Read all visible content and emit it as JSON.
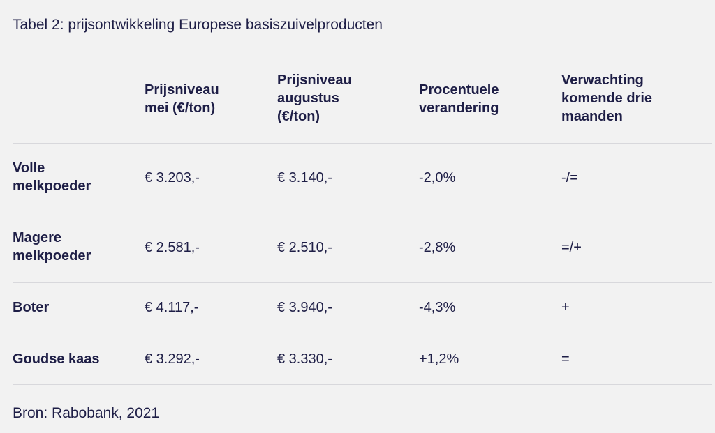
{
  "caption": "Tabel 2: prijsontwikkeling Europese basiszuivelproducten",
  "columns": [
    "Prijsniveau\nmei (€/ton)",
    "Prijsniveau\naugustus\n(€/ton)",
    "Procentuele\nverandering",
    "Verwachting\nkomende drie\nmaanden"
  ],
  "rows": [
    {
      "product": "Volle\nmelkpoeder",
      "mei": "€ 3.203,-",
      "augustus": "€ 3.140,-",
      "verandering": "-2,0%",
      "verwachting": "-/="
    },
    {
      "product": "Magere\nmelkpoeder",
      "mei": "€ 2.581,-",
      "augustus": "€ 2.510,-",
      "verandering": "-2,8%",
      "verwachting": "=/+"
    },
    {
      "product": "Boter",
      "mei": "€ 4.117,-",
      "augustus": "€ 3.940,-",
      "verandering": "-4,3%",
      "verwachting": "+"
    },
    {
      "product": "Goudse kaas",
      "mei": "€ 3.292,-",
      "augustus": "€ 3.330,-",
      "verandering": "+1,2%",
      "verwachting": "="
    }
  ],
  "source": "Bron: Rabobank, 2021"
}
